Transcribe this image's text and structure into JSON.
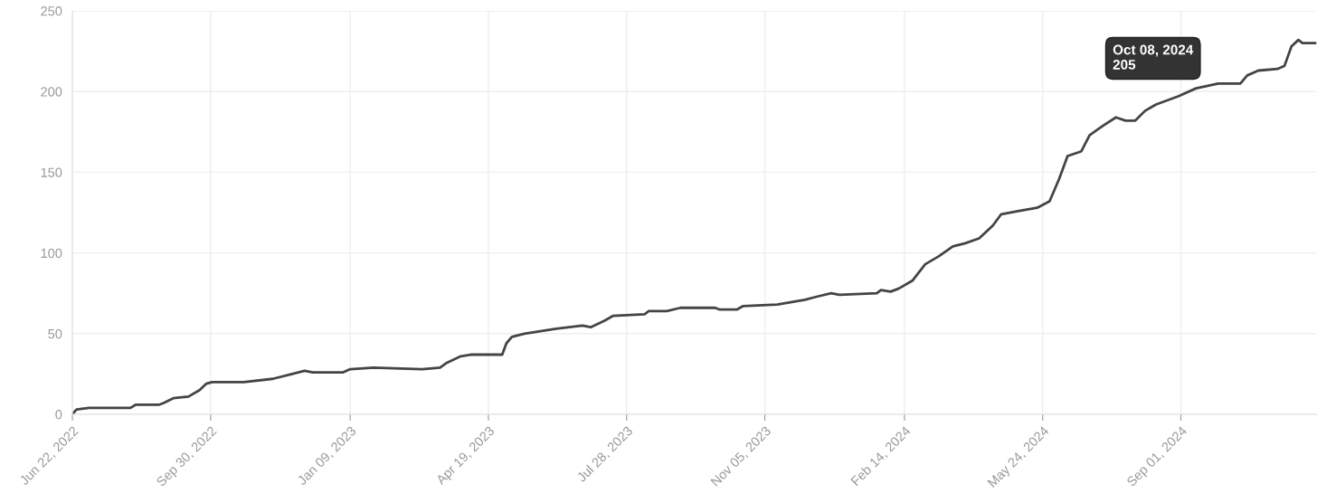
{
  "chart_data": {
    "type": "line",
    "x": [
      "2022-06-22",
      "2022-06-25",
      "2022-07-04",
      "2022-08-03",
      "2022-08-07",
      "2022-08-24",
      "2022-08-27",
      "2022-09-03",
      "2022-09-14",
      "2022-09-22",
      "2022-09-27",
      "2022-10-01",
      "2022-10-24",
      "2022-11-14",
      "2022-11-28",
      "2022-12-07",
      "2022-12-13",
      "2023-01-04",
      "2023-01-09",
      "2023-01-26",
      "2023-03-02",
      "2023-03-15",
      "2023-03-20",
      "2023-03-30",
      "2023-04-07",
      "2023-04-29",
      "2023-05-02",
      "2023-05-06",
      "2023-05-15",
      "2023-06-07",
      "2023-06-26",
      "2023-07-02",
      "2023-07-12",
      "2023-07-18",
      "2023-08-10",
      "2023-08-13",
      "2023-08-26",
      "2023-09-05",
      "2023-09-30",
      "2023-10-03",
      "2023-10-16",
      "2023-10-20",
      "2023-11-14",
      "2023-12-04",
      "2023-12-13",
      "2023-12-23",
      "2023-12-29",
      "2024-01-25",
      "2024-01-28",
      "2024-02-04",
      "2024-02-10",
      "2024-02-20",
      "2024-02-29",
      "2024-03-10",
      "2024-03-20",
      "2024-03-29",
      "2024-04-08",
      "2024-04-18",
      "2024-04-24",
      "2024-05-07",
      "2024-05-20",
      "2024-05-29",
      "2024-06-05",
      "2024-06-11",
      "2024-06-21",
      "2024-06-27",
      "2024-07-07",
      "2024-07-16",
      "2024-07-23",
      "2024-07-30",
      "2024-08-06",
      "2024-08-14",
      "2024-08-30",
      "2024-09-12",
      "2024-09-28",
      "2024-10-14",
      "2024-10-19",
      "2024-10-27",
      "2024-11-10",
      "2024-11-15",
      "2024-11-20",
      "2024-11-25",
      "2024-11-28",
      "2024-12-08"
    ],
    "series": [
      {
        "color": "#444444",
        "values": [
          0,
          3,
          4,
          4,
          6,
          6,
          7,
          10,
          11,
          15,
          19,
          20,
          20,
          22,
          25,
          27,
          26,
          26,
          28,
          29,
          28,
          29,
          32,
          36,
          37,
          37,
          44,
          48,
          50,
          53,
          55,
          54,
          58,
          61,
          62,
          64,
          64,
          66,
          66,
          65,
          65,
          67,
          68,
          71,
          73,
          75,
          74,
          75,
          77,
          76,
          78,
          83,
          93,
          98,
          104,
          106,
          109,
          117,
          124,
          126,
          128,
          132,
          146,
          160,
          163,
          173,
          179,
          184,
          182,
          182,
          188,
          192,
          197,
          202,
          205,
          205,
          210,
          213,
          214,
          216,
          228,
          232,
          230,
          230
        ]
      }
    ],
    "xlim": [
      "2022-06-22",
      "2024-12-08"
    ],
    "xticks": [
      {
        "value": "2022-06-22",
        "label": "Jun 22, 2022"
      },
      {
        "value": "2022-09-30",
        "label": "Sep 30, 2022"
      },
      {
        "value": "2023-01-09",
        "label": "Jan 09, 2023"
      },
      {
        "value": "2023-04-19",
        "label": "Apr 19, 2023"
      },
      {
        "value": "2023-07-28",
        "label": "Jul 28, 2023"
      },
      {
        "value": "2023-11-05",
        "label": "Nov 05, 2023"
      },
      {
        "value": "2024-02-14",
        "label": "Feb 14, 2024"
      },
      {
        "value": "2024-05-24",
        "label": "May 24, 2024"
      },
      {
        "value": "2024-09-01",
        "label": "Sep 01, 2024"
      }
    ],
    "ylim": [
      0,
      250
    ],
    "yticks": [
      0,
      50,
      100,
      150,
      200,
      250
    ],
    "grid": true,
    "marker": "none",
    "line_style": "solid",
    "annotations": [
      {
        "text": "Oct 08, 2024\n205",
        "x": "2024-10-08",
        "y": 205
      }
    ]
  }
}
